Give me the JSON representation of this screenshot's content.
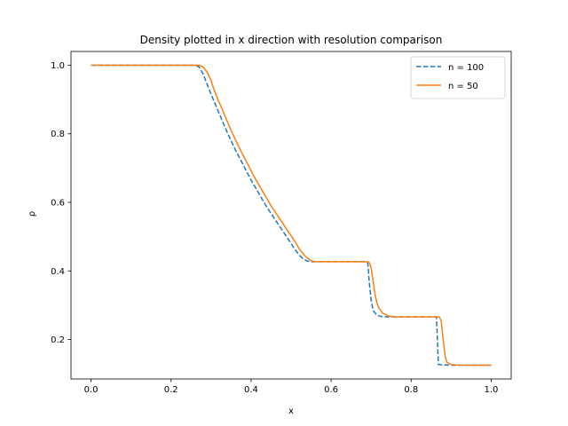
{
  "chart_data": {
    "type": "line",
    "title": "Density plotted in x direction with resolution comparison",
    "xlabel": "x",
    "ylabel": "ρ",
    "xlim": [
      -0.05,
      1.05
    ],
    "ylim": [
      0.085,
      1.04
    ],
    "xticks": [
      0.0,
      0.2,
      0.4,
      0.6,
      0.8,
      1.0
    ],
    "xtick_labels": [
      "0.0",
      "0.2",
      "0.4",
      "0.6",
      "0.8",
      "1.0"
    ],
    "yticks": [
      0.2,
      0.4,
      0.6,
      0.8,
      1.0
    ],
    "ytick_labels": [
      "0.2",
      "0.4",
      "0.6",
      "0.8",
      "1.0"
    ],
    "grid": false,
    "legend_position": "top-right",
    "series": [
      {
        "name": "n = 100",
        "color": "#1f77b4",
        "dash": "dashed",
        "points": [
          [
            0.0,
            1.0
          ],
          [
            0.26,
            1.0
          ],
          [
            0.27,
            0.995
          ],
          [
            0.28,
            0.975
          ],
          [
            0.29,
            0.945
          ],
          [
            0.3,
            0.915
          ],
          [
            0.32,
            0.86
          ],
          [
            0.34,
            0.805
          ],
          [
            0.36,
            0.755
          ],
          [
            0.38,
            0.71
          ],
          [
            0.4,
            0.665
          ],
          [
            0.42,
            0.625
          ],
          [
            0.44,
            0.585
          ],
          [
            0.46,
            0.55
          ],
          [
            0.48,
            0.515
          ],
          [
            0.5,
            0.48
          ],
          [
            0.51,
            0.462
          ],
          [
            0.52,
            0.447
          ],
          [
            0.53,
            0.435
          ],
          [
            0.54,
            0.429
          ],
          [
            0.55,
            0.427
          ],
          [
            0.6,
            0.427
          ],
          [
            0.69,
            0.427
          ],
          [
            0.692,
            0.42
          ],
          [
            0.695,
            0.37
          ],
          [
            0.7,
            0.315
          ],
          [
            0.705,
            0.285
          ],
          [
            0.715,
            0.27
          ],
          [
            0.73,
            0.266
          ],
          [
            0.8,
            0.266
          ],
          [
            0.863,
            0.266
          ],
          [
            0.865,
            0.22
          ],
          [
            0.868,
            0.127
          ],
          [
            0.9,
            0.125
          ],
          [
            1.0,
            0.125
          ]
        ]
      },
      {
        "name": "n = 50",
        "color": "#ff7f0e",
        "dash": "solid",
        "points": [
          [
            0.0,
            1.0
          ],
          [
            0.27,
            1.0
          ],
          [
            0.28,
            0.995
          ],
          [
            0.29,
            0.98
          ],
          [
            0.3,
            0.955
          ],
          [
            0.31,
            0.92
          ],
          [
            0.33,
            0.865
          ],
          [
            0.35,
            0.81
          ],
          [
            0.37,
            0.76
          ],
          [
            0.39,
            0.715
          ],
          [
            0.41,
            0.67
          ],
          [
            0.43,
            0.63
          ],
          [
            0.45,
            0.59
          ],
          [
            0.47,
            0.555
          ],
          [
            0.49,
            0.52
          ],
          [
            0.51,
            0.485
          ],
          [
            0.52,
            0.465
          ],
          [
            0.53,
            0.45
          ],
          [
            0.54,
            0.438
          ],
          [
            0.55,
            0.43
          ],
          [
            0.56,
            0.427
          ],
          [
            0.69,
            0.427
          ],
          [
            0.695,
            0.425
          ],
          [
            0.7,
            0.41
          ],
          [
            0.705,
            0.37
          ],
          [
            0.71,
            0.33
          ],
          [
            0.715,
            0.305
          ],
          [
            0.72,
            0.29
          ],
          [
            0.73,
            0.276
          ],
          [
            0.745,
            0.268
          ],
          [
            0.76,
            0.266
          ],
          [
            0.87,
            0.266
          ],
          [
            0.875,
            0.255
          ],
          [
            0.88,
            0.2
          ],
          [
            0.885,
            0.15
          ],
          [
            0.89,
            0.133
          ],
          [
            0.9,
            0.127
          ],
          [
            0.92,
            0.125
          ],
          [
            1.0,
            0.125
          ]
        ]
      }
    ]
  }
}
